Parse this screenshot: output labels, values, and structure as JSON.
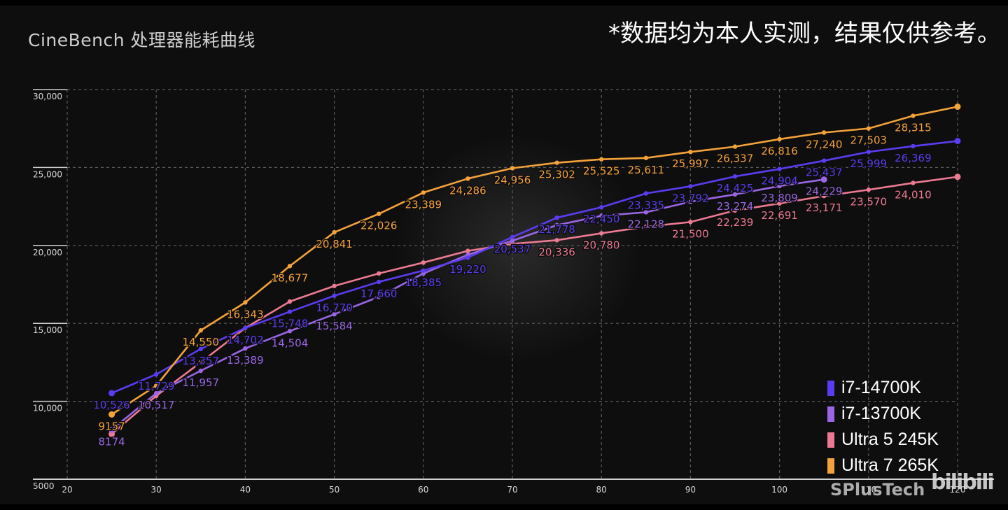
{
  "header": {
    "title": "CineBench 处理器能耗曲线",
    "note": "*数据均为本人实测，结果仅供参考。"
  },
  "watermark": {
    "author": "SPlusTech",
    "platform": "bilibili"
  },
  "legend": [
    {
      "label": "i7-14700K",
      "color": "#5b3cf0"
    },
    {
      "label": "i7-13700K",
      "color": "#9a66e6"
    },
    {
      "label": "Ultra 5 245K",
      "color": "#ec7a92"
    },
    {
      "label": "Ultra 7 265K",
      "color": "#f4a23a"
    }
  ],
  "chart_data": {
    "type": "line",
    "title": "CineBench 处理器能耗曲线",
    "xlabel": "",
    "ylabel": "",
    "x_ticks": [
      20,
      30,
      40,
      50,
      60,
      70,
      80,
      90,
      100,
      110,
      120
    ],
    "y_ticks": [
      5000,
      10000,
      15000,
      20000,
      25000,
      30000
    ],
    "y_tick_labels": [
      "5000",
      "10,000",
      "15,000",
      "20,000",
      "25,000",
      "30,000"
    ],
    "xlim": [
      20,
      120
    ],
    "ylim": [
      5000,
      30000
    ],
    "grid": true,
    "legend_position": "bottom-right",
    "x": [
      25,
      30,
      35,
      40,
      45,
      50,
      55,
      60,
      65,
      70,
      75,
      80,
      85,
      90,
      95,
      100,
      105,
      110,
      115,
      120
    ],
    "series": [
      {
        "name": "i7-14700K",
        "color": "#5b3cf0",
        "values": [
          10526,
          11729,
          13357,
          14702,
          15748,
          16770,
          17660,
          18385,
          19220,
          20537,
          21778,
          22450,
          23335,
          23792,
          24425,
          24904,
          25437,
          25999,
          26369,
          26700
        ],
        "labels": [
          "10,526",
          "11,729",
          "13,357",
          "14,702",
          "15,748",
          "16,770",
          "17,660",
          "18,385",
          "19,220",
          "20,537",
          "21,778",
          "22,450",
          "23,335",
          "23,792",
          "24,425",
          "24,904",
          "25,437",
          "25,999",
          "26,369",
          ""
        ]
      },
      {
        "name": "i7-13700K",
        "color": "#9a66e6",
        "values": [
          8174,
          10517,
          11957,
          13389,
          14504,
          15584,
          16700,
          18200,
          19400,
          20300,
          21300,
          21900,
          22128,
          22800,
          23274,
          23809,
          24229,
          null,
          null,
          null
        ],
        "labels": [
          "8174",
          "10,517",
          "11,957",
          "13,389",
          "14,504",
          "15,584",
          "",
          "",
          "",
          "",
          "",
          "",
          "22,128",
          "",
          "23,274",
          "23,809",
          "24,229",
          "",
          "",
          ""
        ]
      },
      {
        "name": "Ultra 5 245K",
        "color": "#ec7a92",
        "values": [
          7900,
          10350,
          12500,
          14700,
          16400,
          17400,
          18200,
          18900,
          19650,
          20100,
          20336,
          20780,
          21200,
          21500,
          22239,
          22691,
          23171,
          23570,
          24010,
          24400
        ],
        "labels": [
          "",
          "",
          "",
          "",
          "",
          "",
          "",
          "",
          "",
          "",
          "20,336",
          "20,780",
          "",
          "21,500",
          "22,239",
          "22,691",
          "23,171",
          "23,570",
          "24,010",
          ""
        ]
      },
      {
        "name": "Ultra 7 265K",
        "color": "#f4a23a",
        "values": [
          9157,
          11000,
          14550,
          16343,
          18677,
          20841,
          22026,
          23389,
          24286,
          24956,
          25302,
          25525,
          25611,
          25997,
          26337,
          26816,
          27240,
          27503,
          28315,
          28900
        ],
        "labels": [
          "9157",
          "",
          "14,550",
          "16,343",
          "18,677",
          "20,841",
          "22,026",
          "23,389",
          "24,286",
          "24,956",
          "25,302",
          "25,525",
          "25,611",
          "25,997",
          "26,337",
          "26,816",
          "27,240",
          "27,503",
          "28,315",
          ""
        ]
      }
    ]
  }
}
